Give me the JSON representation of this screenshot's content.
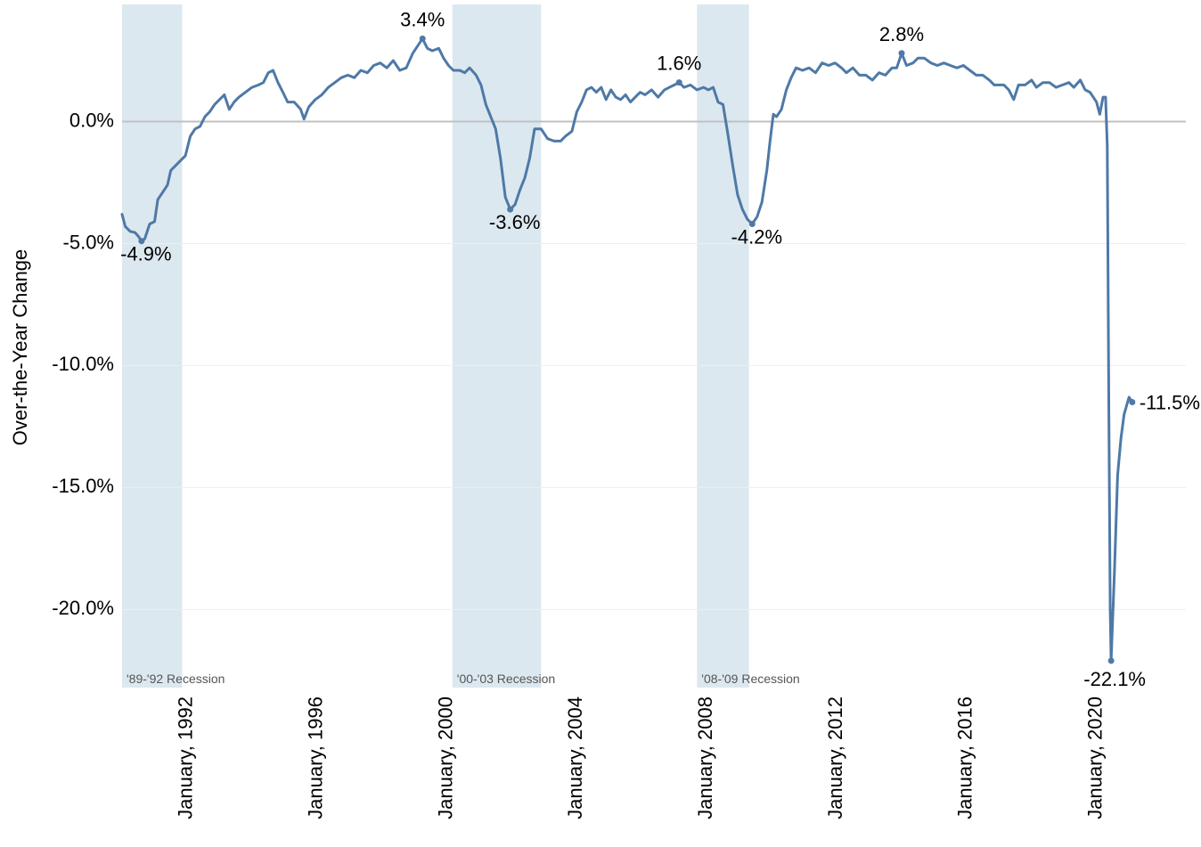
{
  "chart_data": {
    "type": "line",
    "ylabel": "Over-the-Year Change",
    "xlabel": "",
    "ylim": [
      -23.2,
      4.8
    ],
    "xlim": [
      1990.0,
      2022.75
    ],
    "y_ticks": [
      {
        "value": 0,
        "label": "0.0%"
      },
      {
        "value": -5,
        "label": "-5.0%"
      },
      {
        "value": -10,
        "label": "-10.0%"
      },
      {
        "value": -15,
        "label": "-15.0%"
      },
      {
        "value": -20,
        "label": "-20.0%"
      }
    ],
    "x_ticks": [
      {
        "value": 1992.0,
        "label": "January, 1992"
      },
      {
        "value": 1996.0,
        "label": "January, 1996"
      },
      {
        "value": 2000.0,
        "label": "January, 2000"
      },
      {
        "value": 2004.0,
        "label": "January, 2004"
      },
      {
        "value": 2008.0,
        "label": "January, 2008"
      },
      {
        "value": 2012.0,
        "label": "January, 2012"
      },
      {
        "value": 2016.0,
        "label": "January, 2016"
      },
      {
        "value": 2020.0,
        "label": "January, 2020"
      }
    ],
    "grid": true,
    "recessions": [
      {
        "start": 1990.0,
        "end": 1991.85,
        "label": "'89-'92 Recession"
      },
      {
        "start": 2000.17,
        "end": 2002.9,
        "label": "'00-'03 Recession"
      },
      {
        "start": 2007.7,
        "end": 2009.3,
        "label": "'08-'09 Recession"
      }
    ],
    "series": [
      {
        "color": "#4e79a7",
        "points": [
          [
            1990.0,
            -3.8
          ],
          [
            1990.1,
            -4.3
          ],
          [
            1990.25,
            -4.5
          ],
          [
            1990.4,
            -4.55
          ],
          [
            1990.5,
            -4.7
          ],
          [
            1990.6,
            -4.9
          ],
          [
            1990.7,
            -4.8
          ],
          [
            1990.85,
            -4.2
          ],
          [
            1991.0,
            -4.1
          ],
          [
            1991.1,
            -3.2
          ],
          [
            1991.25,
            -2.9
          ],
          [
            1991.4,
            -2.6
          ],
          [
            1991.5,
            -2.0
          ],
          [
            1991.65,
            -1.8
          ],
          [
            1991.8,
            -1.6
          ],
          [
            1991.95,
            -1.4
          ],
          [
            1992.1,
            -0.6
          ],
          [
            1992.25,
            -0.3
          ],
          [
            1992.4,
            -0.2
          ],
          [
            1992.55,
            0.2
          ],
          [
            1992.7,
            0.4
          ],
          [
            1992.85,
            0.7
          ],
          [
            1993.0,
            0.9
          ],
          [
            1993.15,
            1.1
          ],
          [
            1993.3,
            0.5
          ],
          [
            1993.45,
            0.8
          ],
          [
            1993.6,
            1.0
          ],
          [
            1993.8,
            1.2
          ],
          [
            1994.0,
            1.4
          ],
          [
            1994.2,
            1.5
          ],
          [
            1994.35,
            1.6
          ],
          [
            1994.5,
            2.0
          ],
          [
            1994.65,
            2.1
          ],
          [
            1994.8,
            1.6
          ],
          [
            1994.95,
            1.2
          ],
          [
            1995.1,
            0.8
          ],
          [
            1995.3,
            0.8
          ],
          [
            1995.5,
            0.5
          ],
          [
            1995.6,
            0.1
          ],
          [
            1995.75,
            0.6
          ],
          [
            1995.95,
            0.9
          ],
          [
            1996.15,
            1.1
          ],
          [
            1996.35,
            1.4
          ],
          [
            1996.55,
            1.6
          ],
          [
            1996.75,
            1.8
          ],
          [
            1996.95,
            1.9
          ],
          [
            1997.15,
            1.8
          ],
          [
            1997.35,
            2.1
          ],
          [
            1997.55,
            2.0
          ],
          [
            1997.75,
            2.3
          ],
          [
            1997.95,
            2.4
          ],
          [
            1998.15,
            2.2
          ],
          [
            1998.35,
            2.5
          ],
          [
            1998.55,
            2.1
          ],
          [
            1998.75,
            2.2
          ],
          [
            1998.95,
            2.8
          ],
          [
            1999.15,
            3.2
          ],
          [
            1999.25,
            3.4
          ],
          [
            1999.4,
            3.0
          ],
          [
            1999.55,
            2.9
          ],
          [
            1999.75,
            3.0
          ],
          [
            1999.9,
            2.6
          ],
          [
            2000.05,
            2.3
          ],
          [
            2000.2,
            2.1
          ],
          [
            2000.4,
            2.1
          ],
          [
            2000.55,
            2.0
          ],
          [
            2000.7,
            2.2
          ],
          [
            2000.9,
            1.9
          ],
          [
            2001.05,
            1.5
          ],
          [
            2001.2,
            0.7
          ],
          [
            2001.35,
            0.2
          ],
          [
            2001.5,
            -0.3
          ],
          [
            2001.65,
            -1.5
          ],
          [
            2001.8,
            -3.1
          ],
          [
            2001.95,
            -3.6
          ],
          [
            2002.1,
            -3.4
          ],
          [
            2002.25,
            -2.8
          ],
          [
            2002.4,
            -2.3
          ],
          [
            2002.55,
            -1.5
          ],
          [
            2002.7,
            -0.3
          ],
          [
            2002.9,
            -0.3
          ],
          [
            2003.1,
            -0.7
          ],
          [
            2003.3,
            -0.8
          ],
          [
            2003.5,
            -0.8
          ],
          [
            2003.65,
            -0.6
          ],
          [
            2003.85,
            -0.4
          ],
          [
            2004.0,
            0.4
          ],
          [
            2004.15,
            0.8
          ],
          [
            2004.3,
            1.3
          ],
          [
            2004.45,
            1.4
          ],
          [
            2004.6,
            1.2
          ],
          [
            2004.75,
            1.4
          ],
          [
            2004.9,
            0.9
          ],
          [
            2005.05,
            1.3
          ],
          [
            2005.2,
            1.0
          ],
          [
            2005.35,
            0.9
          ],
          [
            2005.5,
            1.1
          ],
          [
            2005.65,
            0.8
          ],
          [
            2005.8,
            1.0
          ],
          [
            2005.95,
            1.2
          ],
          [
            2006.1,
            1.1
          ],
          [
            2006.3,
            1.3
          ],
          [
            2006.5,
            1.0
          ],
          [
            2006.7,
            1.3
          ],
          [
            2006.85,
            1.4
          ],
          [
            2007.0,
            1.5
          ],
          [
            2007.15,
            1.6
          ],
          [
            2007.3,
            1.4
          ],
          [
            2007.5,
            1.5
          ],
          [
            2007.7,
            1.3
          ],
          [
            2007.9,
            1.4
          ],
          [
            2008.05,
            1.3
          ],
          [
            2008.2,
            1.4
          ],
          [
            2008.35,
            0.8
          ],
          [
            2008.5,
            0.7
          ],
          [
            2008.65,
            -0.5
          ],
          [
            2008.8,
            -1.8
          ],
          [
            2008.95,
            -3.0
          ],
          [
            2009.1,
            -3.6
          ],
          [
            2009.25,
            -4.0
          ],
          [
            2009.4,
            -4.2
          ],
          [
            2009.55,
            -3.9
          ],
          [
            2009.7,
            -3.3
          ],
          [
            2009.85,
            -2.0
          ],
          [
            2009.95,
            -0.8
          ],
          [
            2010.05,
            0.3
          ],
          [
            2010.15,
            0.2
          ],
          [
            2010.3,
            0.5
          ],
          [
            2010.45,
            1.3
          ],
          [
            2010.6,
            1.8
          ],
          [
            2010.75,
            2.2
          ],
          [
            2010.95,
            2.1
          ],
          [
            2011.15,
            2.2
          ],
          [
            2011.35,
            2.0
          ],
          [
            2011.55,
            2.4
          ],
          [
            2011.75,
            2.3
          ],
          [
            2011.95,
            2.4
          ],
          [
            2012.15,
            2.2
          ],
          [
            2012.3,
            2.0
          ],
          [
            2012.5,
            2.2
          ],
          [
            2012.7,
            1.9
          ],
          [
            2012.9,
            1.9
          ],
          [
            2013.1,
            1.7
          ],
          [
            2013.3,
            2.0
          ],
          [
            2013.5,
            1.9
          ],
          [
            2013.7,
            2.2
          ],
          [
            2013.85,
            2.2
          ],
          [
            2014.0,
            2.8
          ],
          [
            2014.15,
            2.3
          ],
          [
            2014.35,
            2.4
          ],
          [
            2014.5,
            2.6
          ],
          [
            2014.7,
            2.6
          ],
          [
            2014.9,
            2.4
          ],
          [
            2015.1,
            2.3
          ],
          [
            2015.3,
            2.4
          ],
          [
            2015.5,
            2.3
          ],
          [
            2015.7,
            2.2
          ],
          [
            2015.9,
            2.3
          ],
          [
            2016.1,
            2.1
          ],
          [
            2016.3,
            1.9
          ],
          [
            2016.5,
            1.9
          ],
          [
            2016.7,
            1.7
          ],
          [
            2016.85,
            1.5
          ],
          [
            2017.0,
            1.5
          ],
          [
            2017.15,
            1.5
          ],
          [
            2017.3,
            1.3
          ],
          [
            2017.45,
            0.9
          ],
          [
            2017.6,
            1.5
          ],
          [
            2017.8,
            1.5
          ],
          [
            2018.0,
            1.7
          ],
          [
            2018.15,
            1.4
          ],
          [
            2018.35,
            1.6
          ],
          [
            2018.55,
            1.6
          ],
          [
            2018.75,
            1.4
          ],
          [
            2018.95,
            1.5
          ],
          [
            2019.15,
            1.6
          ],
          [
            2019.3,
            1.4
          ],
          [
            2019.5,
            1.7
          ],
          [
            2019.65,
            1.3
          ],
          [
            2019.8,
            1.2
          ],
          [
            2019.9,
            1.0
          ],
          [
            2020.0,
            0.8
          ],
          [
            2020.1,
            0.3
          ],
          [
            2020.2,
            1.0
          ],
          [
            2020.28,
            1.0
          ],
          [
            2020.33,
            -1.0
          ],
          [
            2020.38,
            -12.0
          ],
          [
            2020.42,
            -20.0
          ],
          [
            2020.45,
            -22.1
          ],
          [
            2020.55,
            -18.5
          ],
          [
            2020.65,
            -14.5
          ],
          [
            2020.75,
            -13.0
          ],
          [
            2020.85,
            -12.0
          ],
          [
            2021.0,
            -11.3
          ],
          [
            2021.1,
            -11.5
          ]
        ]
      }
    ],
    "annotations": [
      {
        "x": 1990.6,
        "y": -4.9,
        "label": "-4.9%"
      },
      {
        "x": 1999.25,
        "y": 3.4,
        "label": "3.4%"
      },
      {
        "x": 2001.95,
        "y": -3.6,
        "label": "-3.6%"
      },
      {
        "x": 2007.15,
        "y": 1.6,
        "label": "1.6%"
      },
      {
        "x": 2009.4,
        "y": -4.2,
        "label": "-4.2%"
      },
      {
        "x": 2014.0,
        "y": 2.8,
        "label": "2.8%"
      },
      {
        "x": 2021.1,
        "y": -11.5,
        "label": "-11.5%"
      },
      {
        "x": 2020.45,
        "y": -22.1,
        "label": "-22.1%"
      }
    ]
  }
}
